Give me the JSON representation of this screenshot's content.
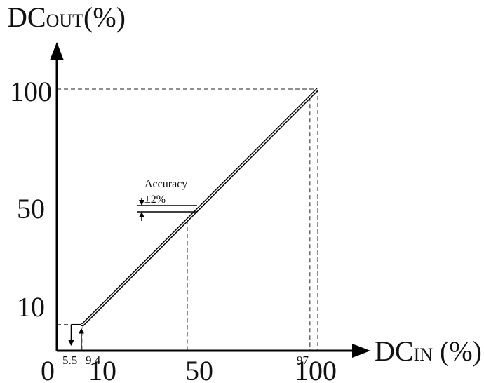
{
  "chart_data": {
    "type": "line",
    "xlabel_main": "DC",
    "xlabel_sub": "IN",
    "xlabel_unit": " (%)",
    "ylabel_main": "DC",
    "ylabel_sub": "OUT",
    "ylabel_unit": "(%)",
    "x_ticks": [
      "0",
      "10",
      "50",
      "100"
    ],
    "x_ticks_small": [
      "5.5",
      "9.4",
      "97"
    ],
    "y_ticks": [
      "10",
      "50",
      "100"
    ],
    "x_range": [
      0,
      100
    ],
    "y_range": [
      0,
      100
    ],
    "series": [
      {
        "x": [
          9.4,
          10,
          97,
          100
        ],
        "y": [
          10,
          10,
          97,
          100
        ]
      }
    ],
    "hysteresis": {
      "low_threshold": 5.5,
      "high_threshold": 9.4,
      "level": 10
    },
    "annotation": {
      "title": "Accuracy",
      "value": "±2%"
    },
    "grid": false
  }
}
